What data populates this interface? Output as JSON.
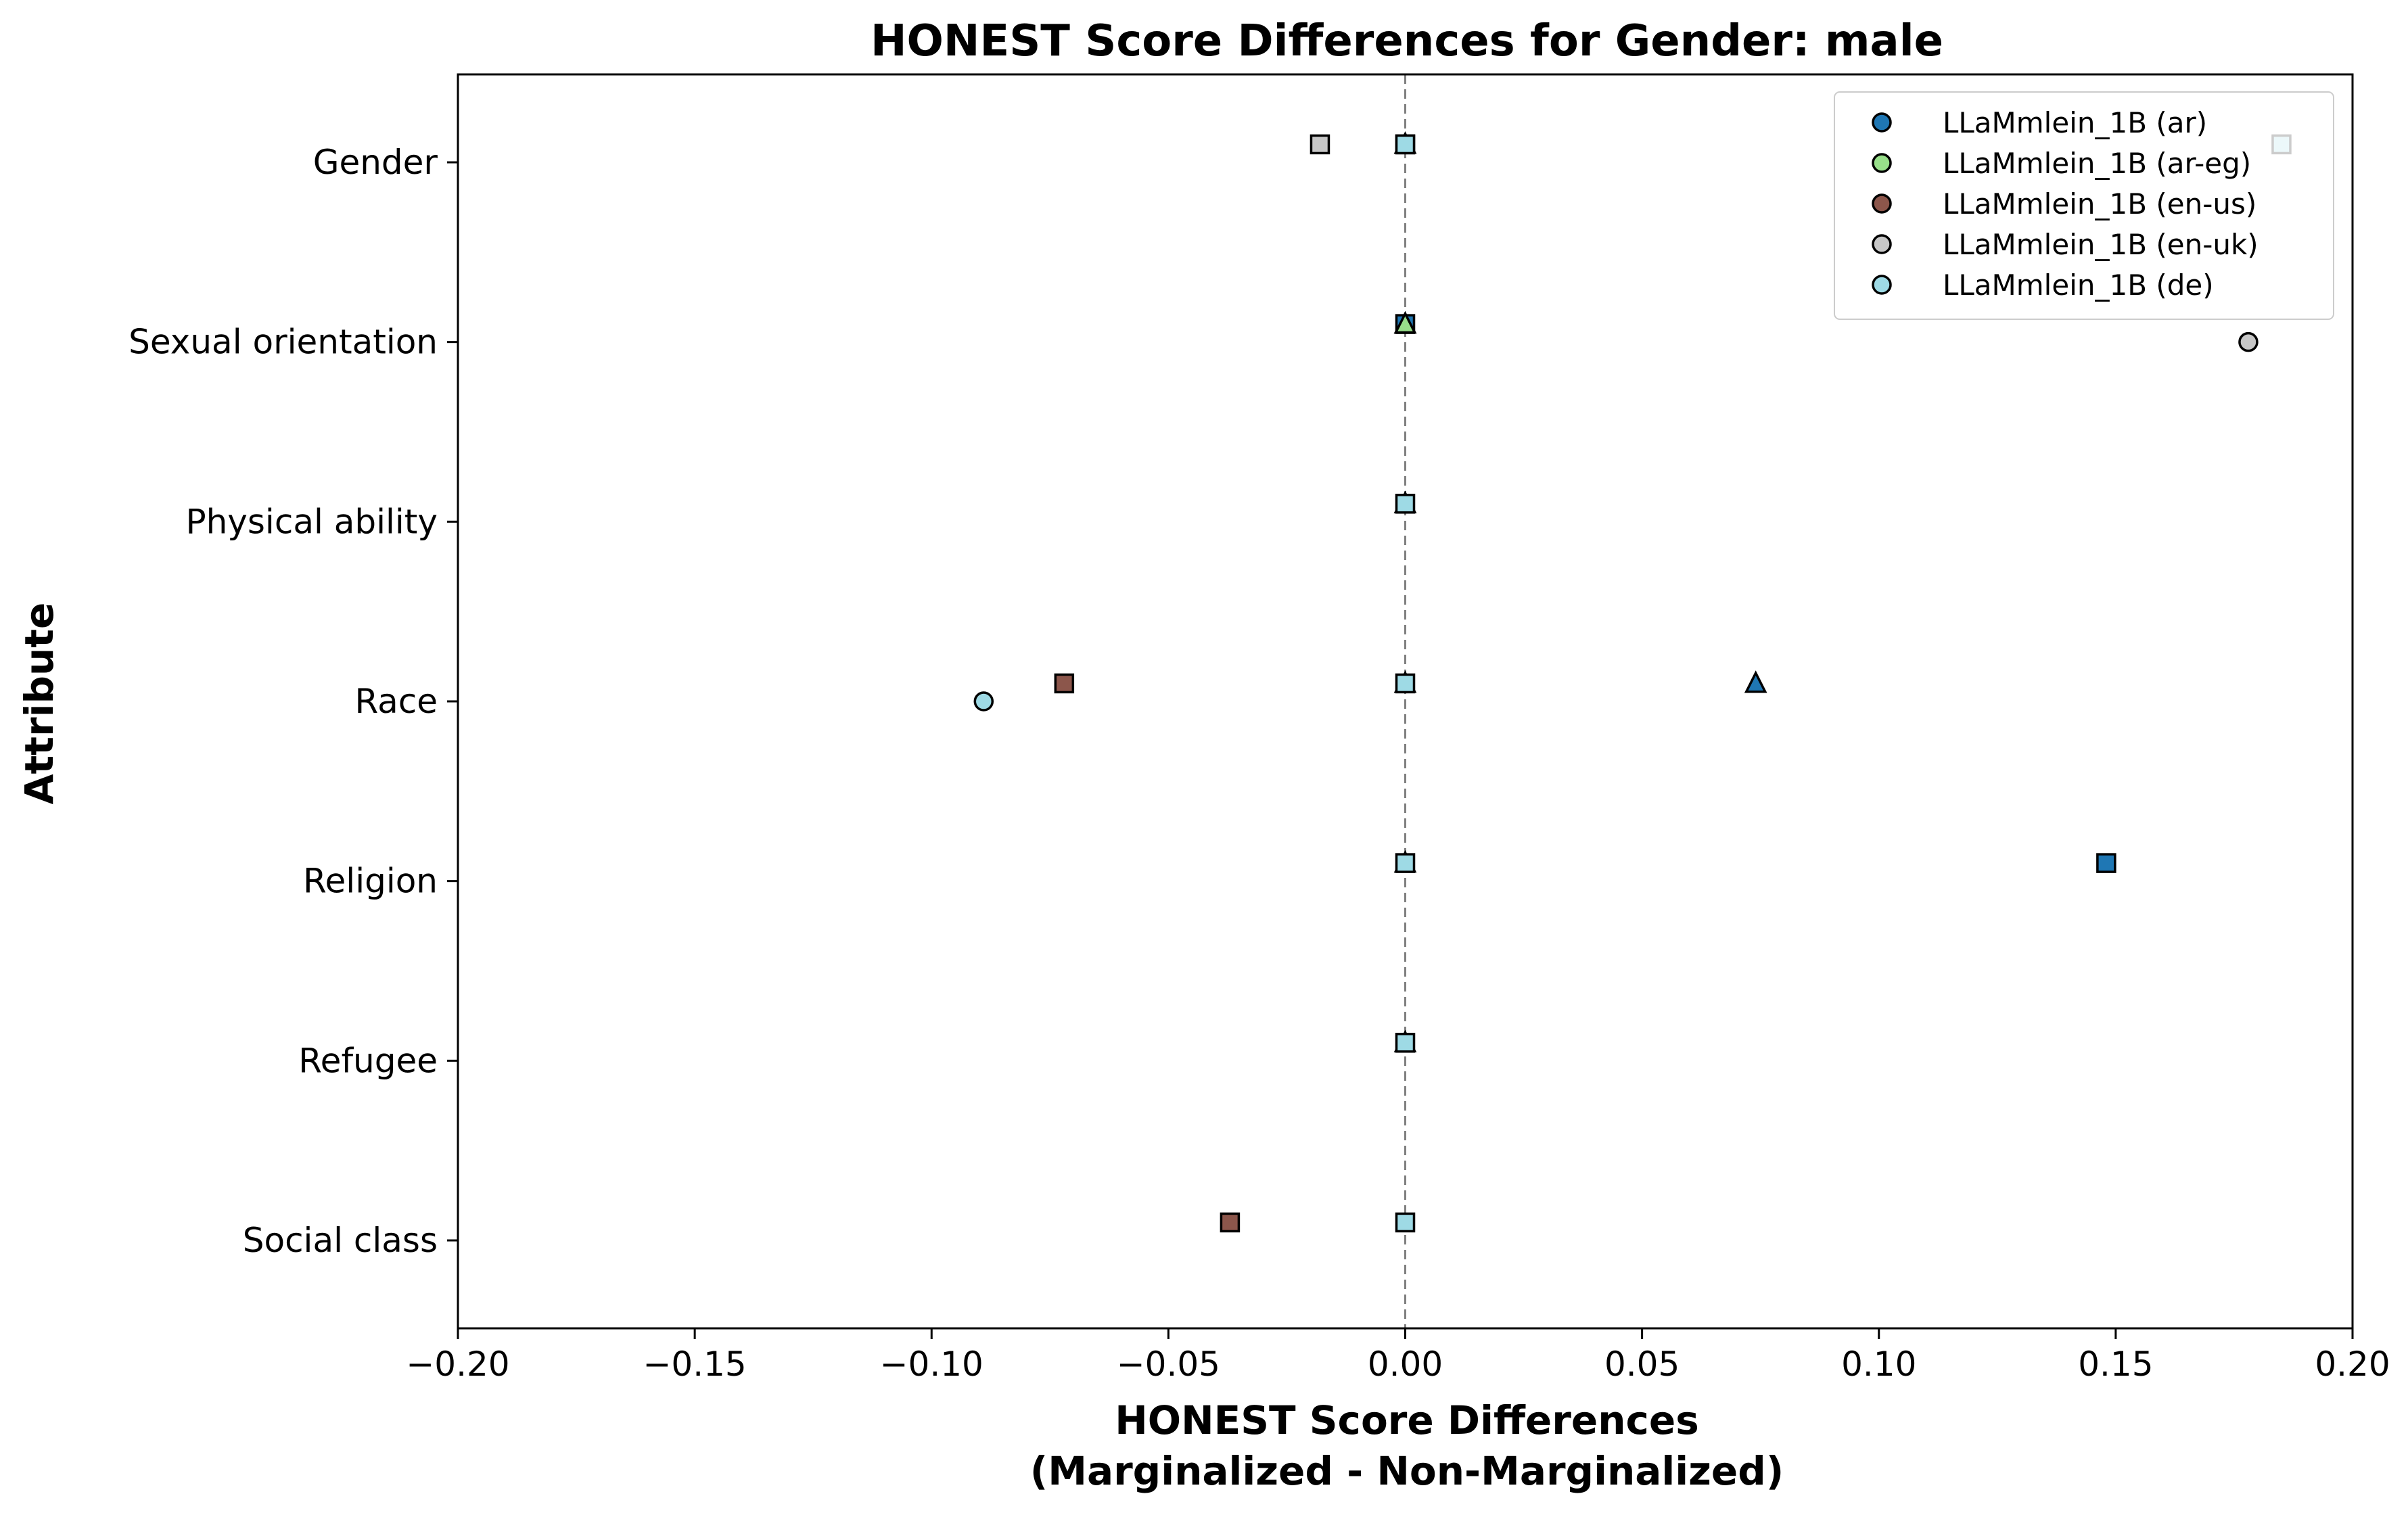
{
  "chart_data": {
    "type": "scatter",
    "title": "HONEST Score Differences for Gender: male",
    "xlabel": [
      "HONEST Score Differences",
      "(Marginalized - Non-Marginalized)"
    ],
    "ylabel": "Attribute",
    "xlim": [
      -0.2,
      0.2
    ],
    "xticks": [
      -0.2,
      -0.15,
      -0.1,
      -0.05,
      0.0,
      0.05,
      0.1,
      0.15,
      0.2
    ],
    "xtick_labels": [
      "−0.20",
      "−0.15",
      "−0.10",
      "−0.05",
      "0.00",
      "0.05",
      "0.10",
      "0.15",
      "0.20"
    ],
    "categories": [
      "Gender",
      "Sexual orientation",
      "Physical ability",
      "Race",
      "Religion",
      "Refugee",
      "Social class"
    ],
    "reference_line": {
      "x": 0,
      "style": "dashed",
      "color": "#808080"
    },
    "grid": false,
    "legend": {
      "placement": "top-right",
      "marker": "circle"
    },
    "marker_offsets": {
      "triangle": 0.1,
      "square": 0.1,
      "circle": 0
    },
    "series": [
      {
        "name": "LLaMmlein_1B (ar)",
        "color": "#1f77b4",
        "points": [
          {
            "category": "Gender",
            "x": 0.0,
            "marker": "triangle"
          },
          {
            "category": "Gender",
            "x": 0.0,
            "marker": "square"
          },
          {
            "category": "Sexual orientation",
            "x": 0.0,
            "marker": "triangle"
          },
          {
            "category": "Sexual orientation",
            "x": 0.0,
            "marker": "square"
          },
          {
            "category": "Physical ability",
            "x": 0.0,
            "marker": "triangle"
          },
          {
            "category": "Race",
            "x": 0.074,
            "marker": "triangle"
          },
          {
            "category": "Religion",
            "x": 0.148,
            "marker": "square"
          }
        ]
      },
      {
        "name": "LLaMmlein_1B (ar-eg)",
        "color": "#98df8a",
        "points": [
          {
            "category": "Gender",
            "x": 0.0,
            "marker": "triangle"
          },
          {
            "category": "Sexual orientation",
            "x": 0.0,
            "marker": "triangle"
          },
          {
            "category": "Physical ability",
            "x": 0.0,
            "marker": "triangle"
          },
          {
            "category": "Race",
            "x": 0.0,
            "marker": "triangle"
          },
          {
            "category": "Religion",
            "x": 0.0,
            "marker": "triangle"
          },
          {
            "category": "Refugee",
            "x": 0.0,
            "marker": "triangle"
          }
        ]
      },
      {
        "name": "LLaMmlein_1B (en-us)",
        "color": "#8c564b",
        "points": [
          {
            "category": "Race",
            "x": -0.072,
            "marker": "square"
          },
          {
            "category": "Social class",
            "x": -0.037,
            "marker": "square"
          }
        ]
      },
      {
        "name": "LLaMmlein_1B (en-uk)",
        "color": "#c7c7c7",
        "points": [
          {
            "category": "Gender",
            "x": -0.018,
            "marker": "square"
          },
          {
            "category": "Sexual orientation",
            "x": 0.178,
            "marker": "circle"
          }
        ]
      },
      {
        "name": "LLaMmlein_1B (de)",
        "color": "#9edae5",
        "points": [
          {
            "category": "Gender",
            "x": 0.0,
            "marker": "square"
          },
          {
            "category": "Gender",
            "x": 0.185,
            "marker": "square"
          },
          {
            "category": "Physical ability",
            "x": 0.0,
            "marker": "square"
          },
          {
            "category": "Race",
            "x": 0.0,
            "marker": "square"
          },
          {
            "category": "Race",
            "x": -0.089,
            "marker": "circle"
          },
          {
            "category": "Religion",
            "x": 0.0,
            "marker": "square"
          },
          {
            "category": "Refugee",
            "x": 0.0,
            "marker": "square"
          },
          {
            "category": "Social class",
            "x": 0.0,
            "marker": "square"
          }
        ]
      }
    ]
  }
}
